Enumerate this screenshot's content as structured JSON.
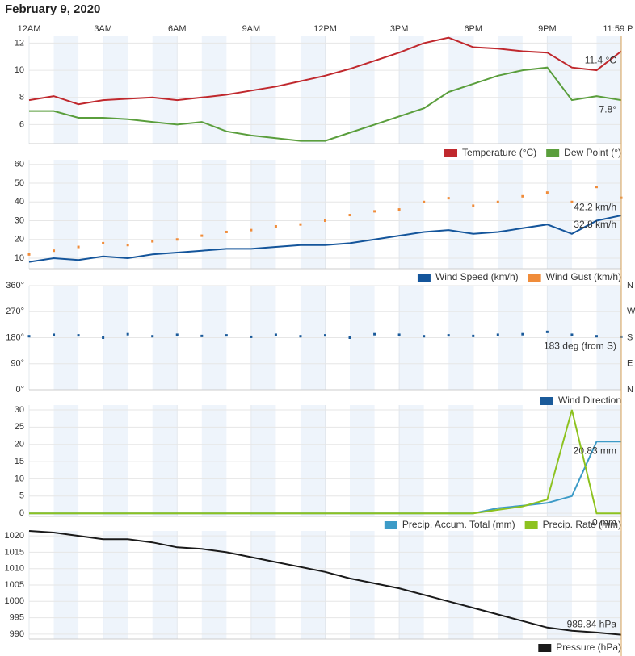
{
  "page_title": "February 9, 2020",
  "chart_data": [
    {
      "type": "line",
      "legend": "bottom-right",
      "grid": true,
      "xlim": [
        0,
        24
      ],
      "xticks": [
        {
          "value": 0,
          "label": "12AM"
        },
        {
          "value": 3,
          "label": "3AM"
        },
        {
          "value": 6,
          "label": "6AM"
        },
        {
          "value": 9,
          "label": "9AM"
        },
        {
          "value": 12,
          "label": "12PM"
        },
        {
          "value": 15,
          "label": "3PM"
        },
        {
          "value": 18,
          "label": "6PM"
        },
        {
          "value": 21,
          "label": "9PM"
        },
        {
          "value": 23.98,
          "label": "11:59 P"
        }
      ],
      "ylim": [
        4.6,
        12.5
      ],
      "yticks": [
        6,
        8,
        10,
        12
      ],
      "x": [
        0,
        1,
        2,
        3,
        4,
        5,
        6,
        7,
        8,
        9,
        10,
        11,
        12,
        13,
        14,
        15,
        16,
        17,
        18,
        19,
        20,
        21,
        22,
        23,
        24
      ],
      "series": [
        {
          "name": "Temperature (°C)",
          "color": "#c0282d",
          "style": "line",
          "end_label": "11.4 °C",
          "values": [
            7.8,
            8.1,
            7.5,
            7.8,
            7.9,
            8.0,
            7.8,
            8.0,
            8.2,
            8.5,
            8.8,
            9.2,
            9.6,
            10.1,
            10.7,
            11.3,
            12.0,
            12.4,
            11.7,
            11.6,
            11.4,
            11.3,
            10.2,
            10.0,
            11.4
          ]
        },
        {
          "name": "Dew Point (°)",
          "color": "#5a9e3c",
          "style": "line",
          "end_label": "7.8°",
          "values": [
            7.0,
            7.0,
            6.5,
            6.5,
            6.4,
            6.2,
            6.0,
            6.2,
            5.5,
            5.2,
            5.0,
            4.8,
            4.8,
            5.4,
            6.0,
            6.6,
            7.2,
            8.4,
            9.0,
            9.6,
            10.0,
            10.2,
            7.8,
            8.1,
            7.8
          ]
        }
      ]
    },
    {
      "type": "line",
      "legend": "bottom-right",
      "grid": true,
      "ylim": [
        4.4,
        62.5
      ],
      "yticks": [
        10,
        20,
        30,
        40,
        50,
        60
      ],
      "x": [
        0,
        1,
        2,
        3,
        4,
        5,
        6,
        7,
        8,
        9,
        10,
        11,
        12,
        13,
        14,
        15,
        16,
        17,
        18,
        19,
        20,
        21,
        22,
        23,
        24
      ],
      "series": [
        {
          "name": "Wind Speed (km/h)",
          "color": "#14559b",
          "style": "line",
          "end_label": "32.8 km/h",
          "values": [
            8,
            10,
            9,
            11,
            10,
            12,
            13,
            14,
            15,
            15,
            16,
            17,
            17,
            18,
            20,
            22,
            24,
            25,
            23,
            24,
            26,
            28,
            23,
            30,
            32.8
          ]
        },
        {
          "name": "Wind Gust (km/h)",
          "color": "#f08c3a",
          "style": "dots",
          "end_label": "42.2 km/h",
          "values": [
            12,
            14,
            16,
            18,
            17,
            19,
            20,
            22,
            24,
            25,
            27,
            28,
            30,
            33,
            35,
            36,
            40,
            42,
            38,
            40,
            43,
            45,
            40,
            48,
            42.2
          ]
        }
      ]
    },
    {
      "type": "scatter",
      "legend": "bottom-right",
      "grid": true,
      "ylim": [
        0,
        360
      ],
      "yticks": [
        {
          "value": 0,
          "label": "0°"
        },
        {
          "value": 90,
          "label": "90°"
        },
        {
          "value": 180,
          "label": "180°"
        },
        {
          "value": 270,
          "label": "270°"
        },
        {
          "value": 360,
          "label": "360°"
        }
      ],
      "y2lim": [
        0,
        360
      ],
      "y2ticks": [
        {
          "value": 0,
          "label": "N"
        },
        {
          "value": 90,
          "label": "E"
        },
        {
          "value": 180,
          "label": "S"
        },
        {
          "value": 270,
          "label": "W"
        },
        {
          "value": 360,
          "label": "N"
        }
      ],
      "x": [
        0,
        1,
        2,
        3,
        4,
        5,
        6,
        7,
        8,
        9,
        10,
        11,
        12,
        13,
        14,
        15,
        16,
        17,
        18,
        19,
        20,
        21,
        22,
        23,
        24
      ],
      "series": [
        {
          "name": "Wind Direction",
          "color": "#1a5a9a",
          "style": "dots",
          "end_label": "183 deg (from S)",
          "values": [
            185,
            190,
            188,
            180,
            192,
            185,
            190,
            186,
            188,
            183,
            190,
            185,
            188,
            180,
            192,
            190,
            185,
            188,
            186,
            190,
            192,
            200,
            190,
            185,
            183
          ]
        }
      ]
    },
    {
      "type": "line",
      "legend": "bottom-right",
      "grid": true,
      "ylim": [
        -0.9,
        31.4
      ],
      "yticks": [
        0,
        5,
        10,
        15,
        20,
        25,
        30
      ],
      "x": [
        0,
        1,
        2,
        3,
        4,
        5,
        6,
        7,
        8,
        9,
        10,
        11,
        12,
        13,
        14,
        15,
        16,
        17,
        18,
        19,
        20,
        21,
        22,
        23,
        24
      ],
      "series": [
        {
          "name": "Precip. Accum. Total (mm)",
          "color": "#3d9bc7",
          "style": "line",
          "end_label": "20.83 mm",
          "values": [
            0,
            0,
            0,
            0,
            0,
            0,
            0,
            0,
            0,
            0,
            0,
            0,
            0,
            0,
            0,
            0,
            0,
            0,
            0,
            1.5,
            2.2,
            3,
            5,
            20.83,
            20.83
          ]
        },
        {
          "name": "Precip. Rate (mm)",
          "color": "#8dc21f",
          "style": "line",
          "end_label": "0 mm",
          "values": [
            0,
            0,
            0,
            0,
            0,
            0,
            0,
            0,
            0,
            0,
            0,
            0,
            0,
            0,
            0,
            0,
            0,
            0,
            0,
            1,
            2,
            4,
            30,
            0,
            0
          ]
        }
      ]
    },
    {
      "type": "line",
      "legend": "bottom-right",
      "grid": true,
      "ylim": [
        988.5,
        1021.5
      ],
      "yticks": [
        990,
        995,
        1000,
        1005,
        1010,
        1015,
        1020
      ],
      "x": [
        0,
        1,
        2,
        3,
        4,
        5,
        6,
        7,
        8,
        9,
        10,
        11,
        12,
        13,
        14,
        15,
        16,
        17,
        18,
        19,
        20,
        21,
        22,
        23,
        24
      ],
      "series": [
        {
          "name": "Pressure (hPa)",
          "color": "#1a1a1a",
          "style": "line",
          "end_label": "989.84 hPa",
          "values": [
            1021.5,
            1021,
            1020,
            1019,
            1019,
            1018,
            1016.5,
            1016,
            1015,
            1013.5,
            1012,
            1010.5,
            1009,
            1007,
            1005.5,
            1004,
            1002,
            1000,
            998,
            996,
            994,
            992,
            991,
            990.5,
            989.84
          ]
        }
      ]
    }
  ]
}
